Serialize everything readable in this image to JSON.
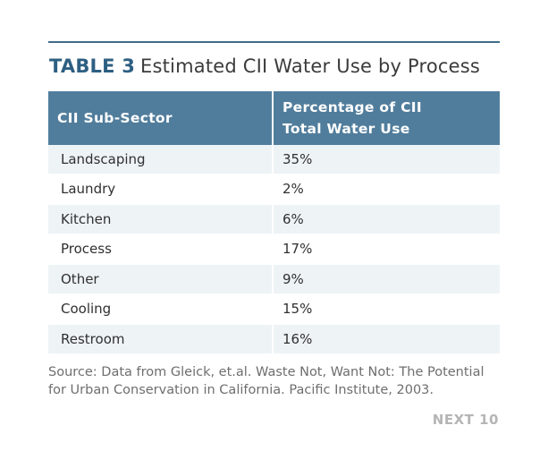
{
  "title": {
    "label": "TABLE 3",
    "text": "Estimated CII Water Use by Process"
  },
  "table": {
    "headers": [
      [
        "CII Sub-Sector"
      ],
      [
        "Percentage of CII",
        "Total Water Use"
      ]
    ],
    "rows": [
      [
        "Landscaping",
        "35%"
      ],
      [
        "Laundry",
        "2%"
      ],
      [
        "Kitchen",
        "6%"
      ],
      [
        "Process",
        "17%"
      ],
      [
        "Other",
        "9%"
      ],
      [
        "Cooling",
        "15%"
      ],
      [
        "Restroom",
        "16%"
      ]
    ]
  },
  "source": {
    "line1": "Source: Data from Gleick, et.al. Waste Not, Want Not: The Potential",
    "line2": "for Urban Conservation in California. Pacific Institute, 2003."
  },
  "brand": "NEXT 10",
  "colors": {
    "header_bg": "#517d9c",
    "title_label": "#2d5f82",
    "rule": "#3f6d89",
    "stripe": "#eef3f6"
  }
}
